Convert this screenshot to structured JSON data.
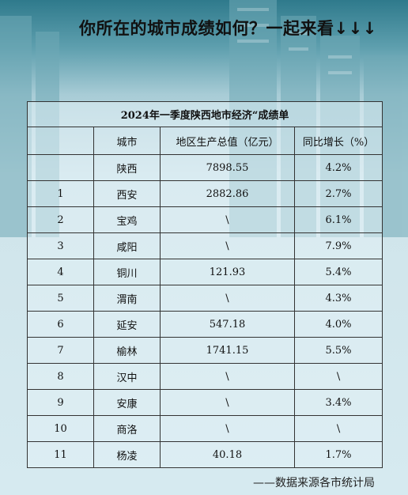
{
  "headline": "你所在的城市成绩如何？一起来看↓↓↓",
  "table": {
    "title": "2024年一季度陕西地市经济“成绩单",
    "headers": [
      "",
      "城市",
      "地区生产总值（亿元）",
      "同比增长（%）"
    ],
    "rows": [
      {
        "rank": "",
        "city": "陕西",
        "gdp": "7898.55",
        "growth": "4.2%"
      },
      {
        "rank": "1",
        "city": "西安",
        "gdp": "2882.86",
        "growth": "2.7%"
      },
      {
        "rank": "2",
        "city": "宝鸡",
        "gdp": "\\",
        "growth": "6.1%"
      },
      {
        "rank": "3",
        "city": "咸阳",
        "gdp": "\\",
        "growth": "7.9%"
      },
      {
        "rank": "4",
        "city": "铜川",
        "gdp": "121.93",
        "growth": "5.4%"
      },
      {
        "rank": "5",
        "city": "渭南",
        "gdp": "\\",
        "growth": "4.3%"
      },
      {
        "rank": "6",
        "city": "延安",
        "gdp": "547.18",
        "growth": "4.0%"
      },
      {
        "rank": "7",
        "city": "榆林",
        "gdp": "1741.15",
        "growth": "5.5%"
      },
      {
        "rank": "8",
        "city": "汉中",
        "gdp": "\\",
        "growth": "\\"
      },
      {
        "rank": "9",
        "city": "安康",
        "gdp": "\\",
        "growth": "3.4%"
      },
      {
        "rank": "10",
        "city": "商洛",
        "gdp": "\\",
        "growth": "\\"
      },
      {
        "rank": "11",
        "city": "杨凌",
        "gdp": "40.18",
        "growth": "1.7%"
      }
    ]
  },
  "source": "——数据来源各市统计局",
  "colors": {
    "header_band": "#2f7a8c",
    "background": "#d9ecf2",
    "border": "#333333"
  }
}
